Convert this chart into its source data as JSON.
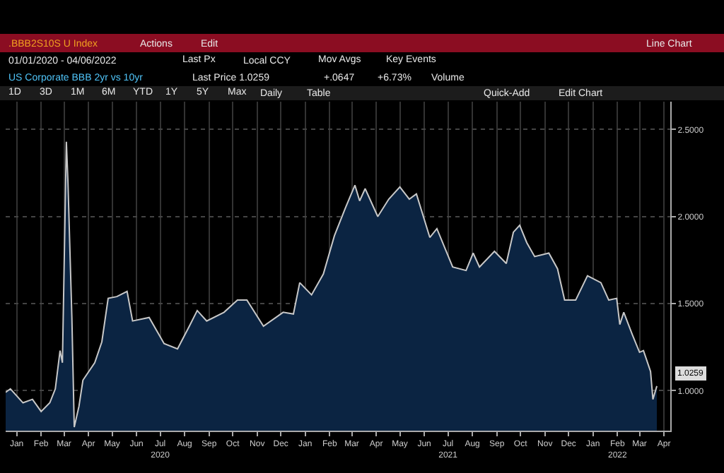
{
  "chart_data": {
    "type": "area",
    "title": "US Corporate BBB 2yr vs 10yr",
    "annotations": [
      ".BBB2S10S U Index",
      "Actions",
      "Edit",
      "Line Chart",
      "01/01/2020 - 04/06/2022",
      "Last Px",
      "Local CCY",
      "Mov Avgs",
      "Key Events",
      "Last Price 1.0259",
      "+.0647",
      "+6.73%",
      "Volume",
      "1D",
      "3D",
      "1M",
      "6M",
      "YTD",
      "1Y",
      "5Y",
      "Max",
      "Daily",
      "Table",
      "Quick-Add",
      "Edit Chart",
      {
        "text": "1.0259",
        "x": "2022-04-06",
        "y": 1.0259
      }
    ],
    "x": [
      "2020-01-01",
      "2020-01-07",
      "2020-01-23",
      "2020-02-04",
      "2020-02-15",
      "2020-02-26",
      "2020-03-04",
      "2020-03-10",
      "2020-03-13",
      "2020-03-18",
      "2020-03-20",
      "2020-03-25",
      "2020-03-28",
      "2020-04-03",
      "2020-04-08",
      "2020-04-23",
      "2020-05-02",
      "2020-05-10",
      "2020-05-21",
      "2020-06-03",
      "2020-06-10",
      "2020-07-01",
      "2020-07-20",
      "2020-08-06",
      "2020-08-21",
      "2020-08-31",
      "2020-09-12",
      "2020-10-04",
      "2020-10-21",
      "2020-11-02",
      "2020-11-23",
      "2020-12-18",
      "2020-12-31",
      "2021-01-08",
      "2021-01-23",
      "2021-02-07",
      "2021-02-21",
      "2021-03-07",
      "2021-03-19",
      "2021-03-25",
      "2021-04-01",
      "2021-04-17",
      "2021-05-01",
      "2021-05-15",
      "2021-05-27",
      "2021-06-05",
      "2021-06-22",
      "2021-07-01",
      "2021-07-21",
      "2021-08-07",
      "2021-08-16",
      "2021-08-24",
      "2021-09-12",
      "2021-09-27",
      "2021-10-06",
      "2021-10-14",
      "2021-10-23",
      "2021-11-02",
      "2021-11-20",
      "2021-12-01",
      "2021-12-10",
      "2021-12-24",
      "2022-01-08",
      "2022-01-25",
      "2022-02-04",
      "2022-02-14",
      "2022-02-18",
      "2022-02-23",
      "2022-03-06",
      "2022-03-15",
      "2022-03-20",
      "2022-03-29",
      "2022-04-01",
      "2022-04-06"
    ],
    "series": [
      {
        "color": "#c8c8c8",
        "values": [
          0.99,
          1.01,
          0.93,
          0.95,
          0.88,
          0.93,
          1.01,
          1.23,
          1.16,
          2.43,
          2.2,
          1.42,
          0.79,
          0.91,
          1.06,
          1.16,
          1.28,
          1.53,
          1.54,
          1.57,
          1.4,
          1.42,
          1.27,
          1.24,
          1.37,
          1.46,
          1.4,
          1.45,
          1.52,
          1.52,
          1.37,
          1.45,
          1.44,
          1.62,
          1.55,
          1.67,
          1.89,
          2.05,
          2.18,
          2.09,
          2.16,
          2.0,
          2.1,
          2.17,
          2.1,
          2.13,
          1.88,
          1.93,
          1.71,
          1.69,
          1.79,
          1.71,
          1.8,
          1.73,
          1.91,
          1.95,
          1.85,
          1.77,
          1.79,
          1.7,
          1.52,
          1.52,
          1.66,
          1.62,
          1.52,
          1.53,
          1.38,
          1.45,
          1.32,
          1.22,
          1.23,
          1.11,
          0.95,
          1.0259
        ]
      }
    ],
    "xlim": [
      "2020-01-01",
      "2022-04-23"
    ],
    "xticks": [
      {
        "value": "2020-01-15",
        "label": "Jan"
      },
      {
        "value": "2020-02-15",
        "label": "Feb"
      },
      {
        "value": "2020-03-15",
        "label": "Mar"
      },
      {
        "value": "2020-04-15",
        "label": "Apr"
      },
      {
        "value": "2020-05-15",
        "label": "May"
      },
      {
        "value": "2020-06-15",
        "label": "Jun"
      },
      {
        "value": "2020-07-15",
        "label": "Jul\n2020"
      },
      {
        "value": "2020-08-15",
        "label": "Aug"
      },
      {
        "value": "2020-09-15",
        "label": "Sep"
      },
      {
        "value": "2020-10-15",
        "label": "Oct"
      },
      {
        "value": "2020-11-15",
        "label": "Nov"
      },
      {
        "value": "2020-12-15",
        "label": "Dec"
      },
      {
        "value": "2021-01-15",
        "label": "Jan"
      },
      {
        "value": "2021-02-15",
        "label": "Feb"
      },
      {
        "value": "2021-03-15",
        "label": "Mar"
      },
      {
        "value": "2021-04-15",
        "label": "Apr"
      },
      {
        "value": "2021-05-15",
        "label": "May"
      },
      {
        "value": "2021-06-15",
        "label": "Jun"
      },
      {
        "value": "2021-07-15",
        "label": "Jul\n2021"
      },
      {
        "value": "2021-08-15",
        "label": "Aug"
      },
      {
        "value": "2021-09-15",
        "label": "Sep"
      },
      {
        "value": "2021-10-15",
        "label": "Oct"
      },
      {
        "value": "2021-11-15",
        "label": "Nov"
      },
      {
        "value": "2021-12-15",
        "label": "Dec"
      },
      {
        "value": "2022-01-15",
        "label": "Jan"
      },
      {
        "value": "2022-02-15",
        "label": "Feb\n2022"
      },
      {
        "value": "2022-03-15",
        "label": "Mar"
      },
      {
        "value": "2022-04-15",
        "label": "Apr"
      }
    ],
    "ylim": [
      0.77,
      2.66
    ],
    "yticks": [
      {
        "value": 1,
        "label": "1.0000"
      },
      {
        "value": 1.5,
        "label": "1.5000"
      },
      {
        "value": 2,
        "label": "2.0000"
      },
      {
        "value": 2.5,
        "label": "2.5000"
      }
    ],
    "grid": true,
    "legend": false,
    "marker": "none",
    "line_style": "solid"
  }
}
